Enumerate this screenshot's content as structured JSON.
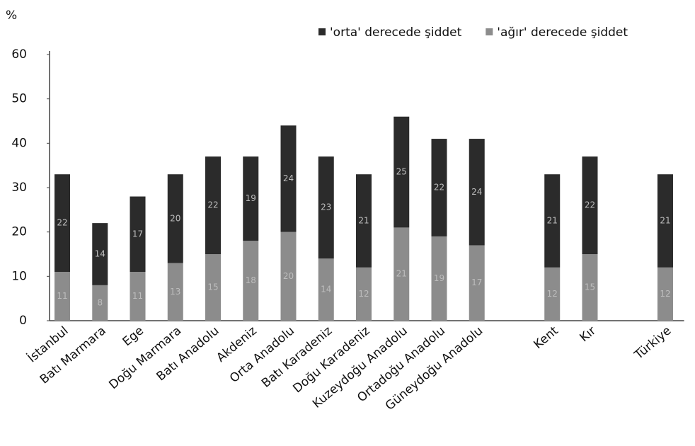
{
  "chart_data": {
    "type": "stacked_bar",
    "y_label": "%",
    "categories": [
      "İstanbul",
      "Batı Marmara",
      "Ege",
      "Doğu Marmara",
      "Batı Anadolu",
      "Akdeniz",
      "Orta Anadolu",
      "Batı Karadeniz",
      "Doğu Karadeniz",
      "Kuzeydoğu Anadolu",
      "Ortadoğu Anadolu",
      "Güneydoğu Anadolu",
      null,
      "Kent",
      "Kır",
      null,
      "Türkiye"
    ],
    "series": [
      {
        "name": "'ağır' derecede şiddet",
        "color": "#8c8c8c",
        "values": [
          11,
          8,
          11,
          13,
          15,
          18,
          20,
          14,
          12,
          21,
          19,
          17,
          null,
          12,
          15,
          null,
          12
        ]
      },
      {
        "name": "'orta' derecede şiddet",
        "color": "#2b2b2b",
        "values": [
          22,
          14,
          17,
          20,
          22,
          19,
          24,
          23,
          21,
          25,
          22,
          24,
          null,
          21,
          22,
          null,
          21
        ]
      }
    ],
    "ylim": [
      0,
      60
    ],
    "yticks": [
      0,
      10,
      20,
      30,
      40,
      50,
      60
    ],
    "grid": false,
    "legend": "top-right"
  }
}
